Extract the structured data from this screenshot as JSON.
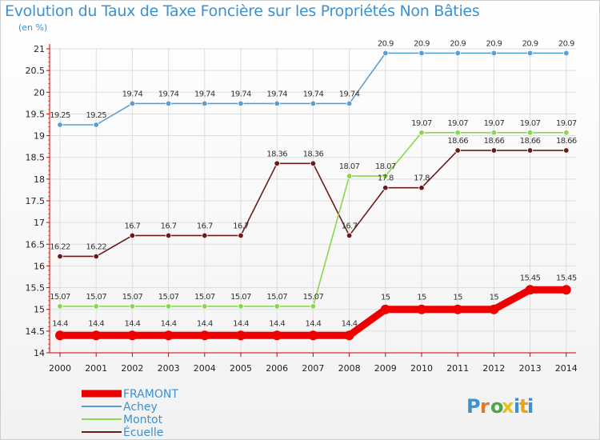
{
  "title": "Evolution du Taux de Taxe Foncière sur les Propriétés Non Bâties",
  "unit": "(en %)",
  "brand": "Proxiti",
  "colors": {
    "FRAMONT": "#ee0000",
    "Achey": "#5a9fd4",
    "Montot": "#88d84c",
    "Écuelle": "#6b1a1a",
    "axis": "#cc0000",
    "grid": "#dddddd"
  },
  "chart_data": {
    "type": "line",
    "title": "Evolution du Taux de Taxe Foncière sur les Propriétés Non Bâties",
    "ylabel": "(en %)",
    "xlabel": "",
    "x": [
      "2000",
      "2001",
      "2002",
      "2003",
      "2004",
      "2005",
      "2006",
      "2007",
      "2008",
      "2009",
      "2010",
      "2011",
      "2012",
      "2013",
      "2014"
    ],
    "yticks": [
      "14",
      "14.5",
      "15",
      "15.5",
      "16",
      "16.5",
      "17",
      "17.5",
      "18",
      "18.5",
      "19",
      "19.5",
      "20",
      "20.5",
      "21"
    ],
    "ylim": [
      14,
      21
    ],
    "series": [
      {
        "name": "Achey",
        "values": [
          19.25,
          19.25,
          19.74,
          19.74,
          19.74,
          19.74,
          19.74,
          19.74,
          19.74,
          20.9,
          20.9,
          20.9,
          20.9,
          20.9,
          20.9
        ],
        "labels": [
          "19.25",
          "19.25",
          "19.74",
          "19.74",
          "19.74",
          "19.74",
          "19.74",
          "19.74",
          "19.74",
          "20.9",
          "20.9",
          "20.9",
          "20.9",
          "20.9",
          "20.9"
        ]
      },
      {
        "name": "Écuelle",
        "values": [
          16.22,
          16.22,
          16.7,
          16.7,
          16.7,
          16.7,
          18.36,
          18.36,
          16.7,
          17.8,
          17.8,
          18.66,
          18.66,
          18.66,
          18.66
        ],
        "labels": [
          "16.22",
          "16.22",
          "16.7",
          "16.7",
          "16.7",
          "16.7",
          "18.36",
          "18.36",
          "16.7",
          "17.8",
          "17.8",
          "18.66",
          "18.66",
          "18.66",
          "18.66"
        ]
      },
      {
        "name": "Montot",
        "values": [
          15.07,
          15.07,
          15.07,
          15.07,
          15.07,
          15.07,
          15.07,
          15.07,
          18.07,
          18.07,
          19.07,
          19.07,
          19.07,
          19.07,
          19.07
        ],
        "labels": [
          "15.07",
          "15.07",
          "15.07",
          "15.07",
          "15.07",
          "15.07",
          "15.07",
          "15.07",
          "18.07",
          "18.07",
          "19.07",
          "19.07",
          "19.07",
          "19.07",
          "19.07"
        ]
      },
      {
        "name": "FRAMONT",
        "values": [
          14.4,
          14.4,
          14.4,
          14.4,
          14.4,
          14.4,
          14.4,
          14.4,
          14.4,
          15,
          15,
          15,
          15,
          15.45,
          15.45
        ],
        "labels": [
          "14.4",
          "14.4",
          "14.4",
          "14.4",
          "14.4",
          "14.4",
          "14.4",
          "14.4",
          "14.4",
          "15",
          "15",
          "15",
          "15",
          "15.45",
          "15.45"
        ]
      }
    ],
    "legend": [
      "FRAMONT",
      "Achey",
      "Montot",
      "Écuelle"
    ],
    "legend_position": "bottom-left",
    "grid": true
  }
}
